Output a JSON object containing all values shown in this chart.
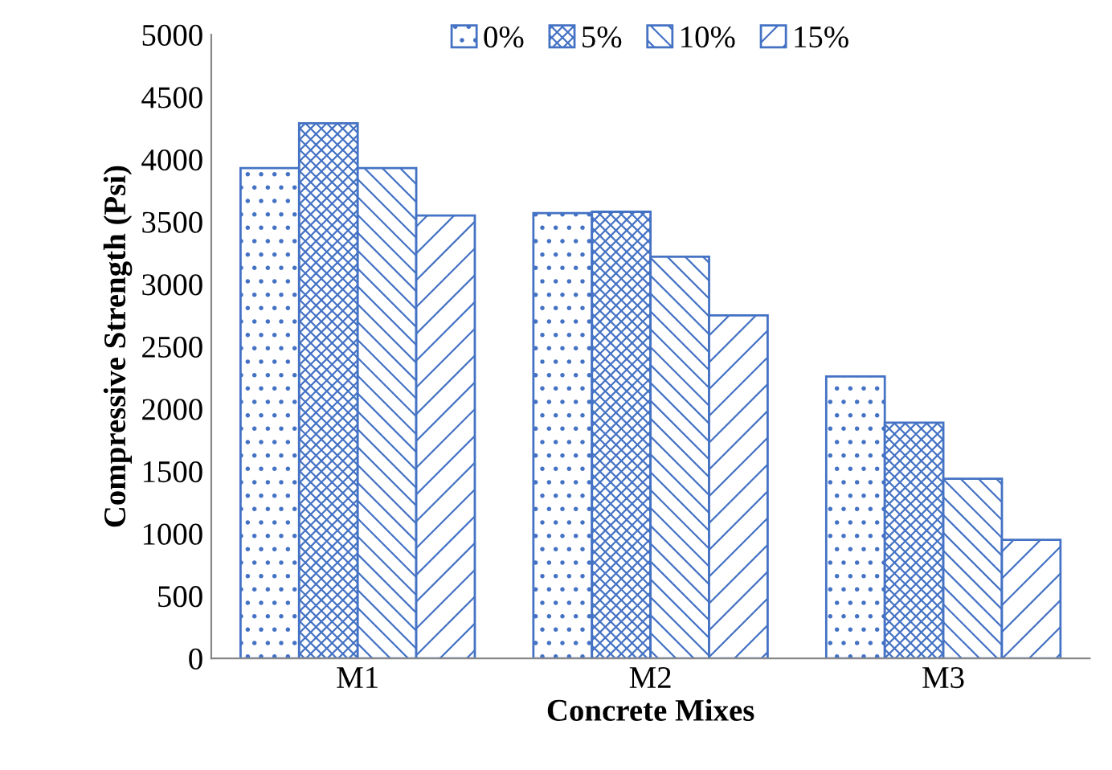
{
  "chart_data": {
    "type": "bar",
    "xlabel": "Concrete Mixes",
    "ylabel": "Compressive Strength (Psi)",
    "categories": [
      "M1",
      "M2",
      "M3"
    ],
    "series": [
      {
        "name": "0%",
        "color": "#4472c4",
        "values": [
          3930,
          3570,
          2260
        ]
      },
      {
        "name": "5%",
        "color": "#4472c4",
        "values": [
          4290,
          3580,
          1890
        ]
      },
      {
        "name": "10%",
        "color": "#4472c4",
        "values": [
          3930,
          3220,
          1440
        ]
      },
      {
        "name": "15%",
        "color": "#4472c4",
        "values": [
          3550,
          2750,
          950
        ]
      }
    ],
    "ylim": [
      0,
      5000
    ],
    "yticks": [
      0,
      500,
      1000,
      1500,
      2000,
      2500,
      3000,
      3500,
      4000,
      4500,
      5000
    ],
    "grid": false,
    "legend": "top"
  }
}
